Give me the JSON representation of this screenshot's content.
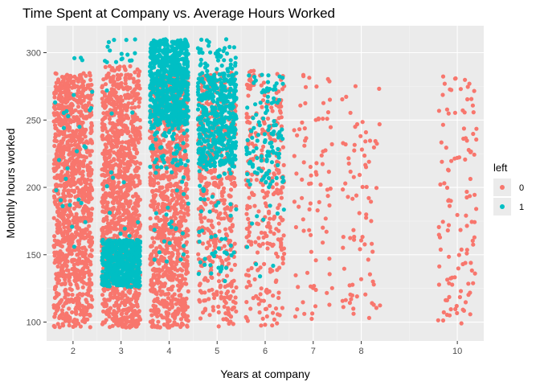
{
  "chart_data": {
    "type": "scatter",
    "title": "Time Spent at Company vs. Average Hours Worked",
    "xlabel": "Years at company",
    "ylabel": "Monthly hours worked",
    "xlim": [
      1.45,
      10.55
    ],
    "ylim": [
      86,
      320
    ],
    "x_ticks": [
      2,
      3,
      4,
      5,
      6,
      7,
      8,
      10
    ],
    "y_ticks": [
      100,
      150,
      200,
      250,
      300
    ],
    "grid": true,
    "jitter_width": 0.4,
    "legend": {
      "title": "left",
      "position": "right"
    },
    "series": [
      {
        "name": "0",
        "color": "#F8766D",
        "groups": [
          {
            "x": 2,
            "y_ranges": [
              [
                96,
                285
              ]
            ],
            "density": "very dense"
          },
          {
            "x": 3,
            "y_ranges": [
              [
                96,
                290
              ]
            ],
            "density": "very dense"
          },
          {
            "x": 4,
            "y_ranges": [
              [
                96,
                285
              ]
            ],
            "density": "dense"
          },
          {
            "x": 5,
            "y_ranges": [
              [
                96,
                285
              ]
            ],
            "density": "moderate"
          },
          {
            "x": 6,
            "y_ranges": [
              [
                97,
                287
              ]
            ],
            "density": "moderate"
          },
          {
            "x": 7,
            "y_ranges": [
              [
                101,
                286
              ]
            ],
            "density": "sparse"
          },
          {
            "x": 8,
            "y_ranges": [
              [
                101,
                283
              ]
            ],
            "density": "sparse"
          },
          {
            "x": 10,
            "y_ranges": [
              [
                98,
                285
              ]
            ],
            "density": "sparse"
          }
        ]
      },
      {
        "name": "1",
        "color": "#00BFC4",
        "groups": [
          {
            "x": 2,
            "y_ranges": [
              [
                140,
                296
              ]
            ],
            "density": "few"
          },
          {
            "x": 3,
            "y_ranges": [
              [
                126,
                161
              ],
              [
                292,
                310
              ]
            ],
            "density": "dense block 126-161"
          },
          {
            "x": 4,
            "y_ranges": [
              [
                214,
                310
              ]
            ],
            "density": "dense block 246-310"
          },
          {
            "x": 5,
            "y_ranges": [
              [
                130,
                310
              ]
            ],
            "density": "dense block 215-285"
          },
          {
            "x": 6,
            "y_ranges": [
              [
                130,
                285
              ]
            ],
            "density": "moderate 200-285"
          }
        ]
      }
    ]
  }
}
